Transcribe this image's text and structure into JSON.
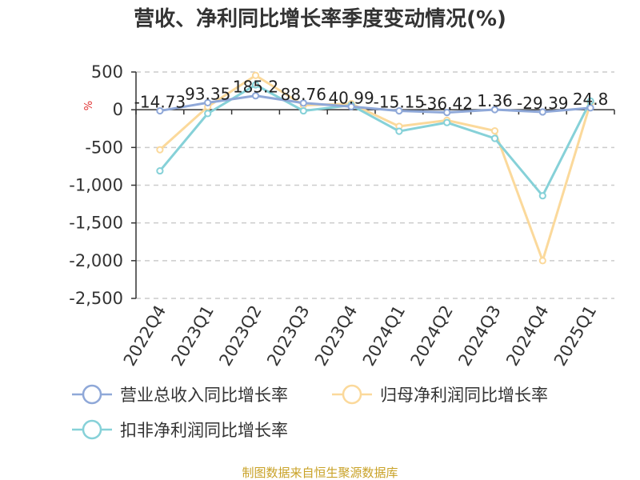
{
  "chart_data": {
    "type": "line",
    "title": "营收、净利同比增长率季度变动情况(%)",
    "unit_label": "%",
    "categories": [
      "2022Q4",
      "2023Q1",
      "2023Q2",
      "2023Q3",
      "2023Q4",
      "2024Q1",
      "2024Q2",
      "2024Q3",
      "2024Q4",
      "2025Q1"
    ],
    "ylim": [
      -2500,
      500
    ],
    "yticks": [
      500,
      0,
      -500,
      -1000,
      -1500,
      -2000,
      -2500
    ],
    "ytick_labels": [
      "500",
      "0",
      "-500",
      "-1,000",
      "-1,500",
      "-2,000",
      "-2,500"
    ],
    "grid": true,
    "legend_position": "bottom",
    "series": [
      {
        "name": "营业总收入同比增长率",
        "color": "#8fa8d8",
        "values": [
          -14.73,
          93.35,
          185.2,
          88.76,
          40.99,
          -15.15,
          -36.42,
          1.36,
          -29.39,
          24.8
        ],
        "labels": [
          "-14.73",
          "93.35",
          "185.2",
          "88.76",
          "40.99",
          "-15.15",
          "-36.42",
          "1.36",
          "-29.39",
          "24.8"
        ]
      },
      {
        "name": "归母净利润同比增长率",
        "color": "#fbd99b",
        "values": [
          -530,
          40,
          455,
          60,
          80,
          -220,
          -140,
          -280,
          -2000,
          90
        ]
      },
      {
        "name": "扣非净利润同比增长率",
        "color": "#86d1d8",
        "values": [
          -810,
          -50,
          330,
          -15,
          60,
          -285,
          -170,
          -380,
          -1140,
          115
        ]
      }
    ]
  },
  "source_text": "制图数据来自恒生聚源数据库"
}
